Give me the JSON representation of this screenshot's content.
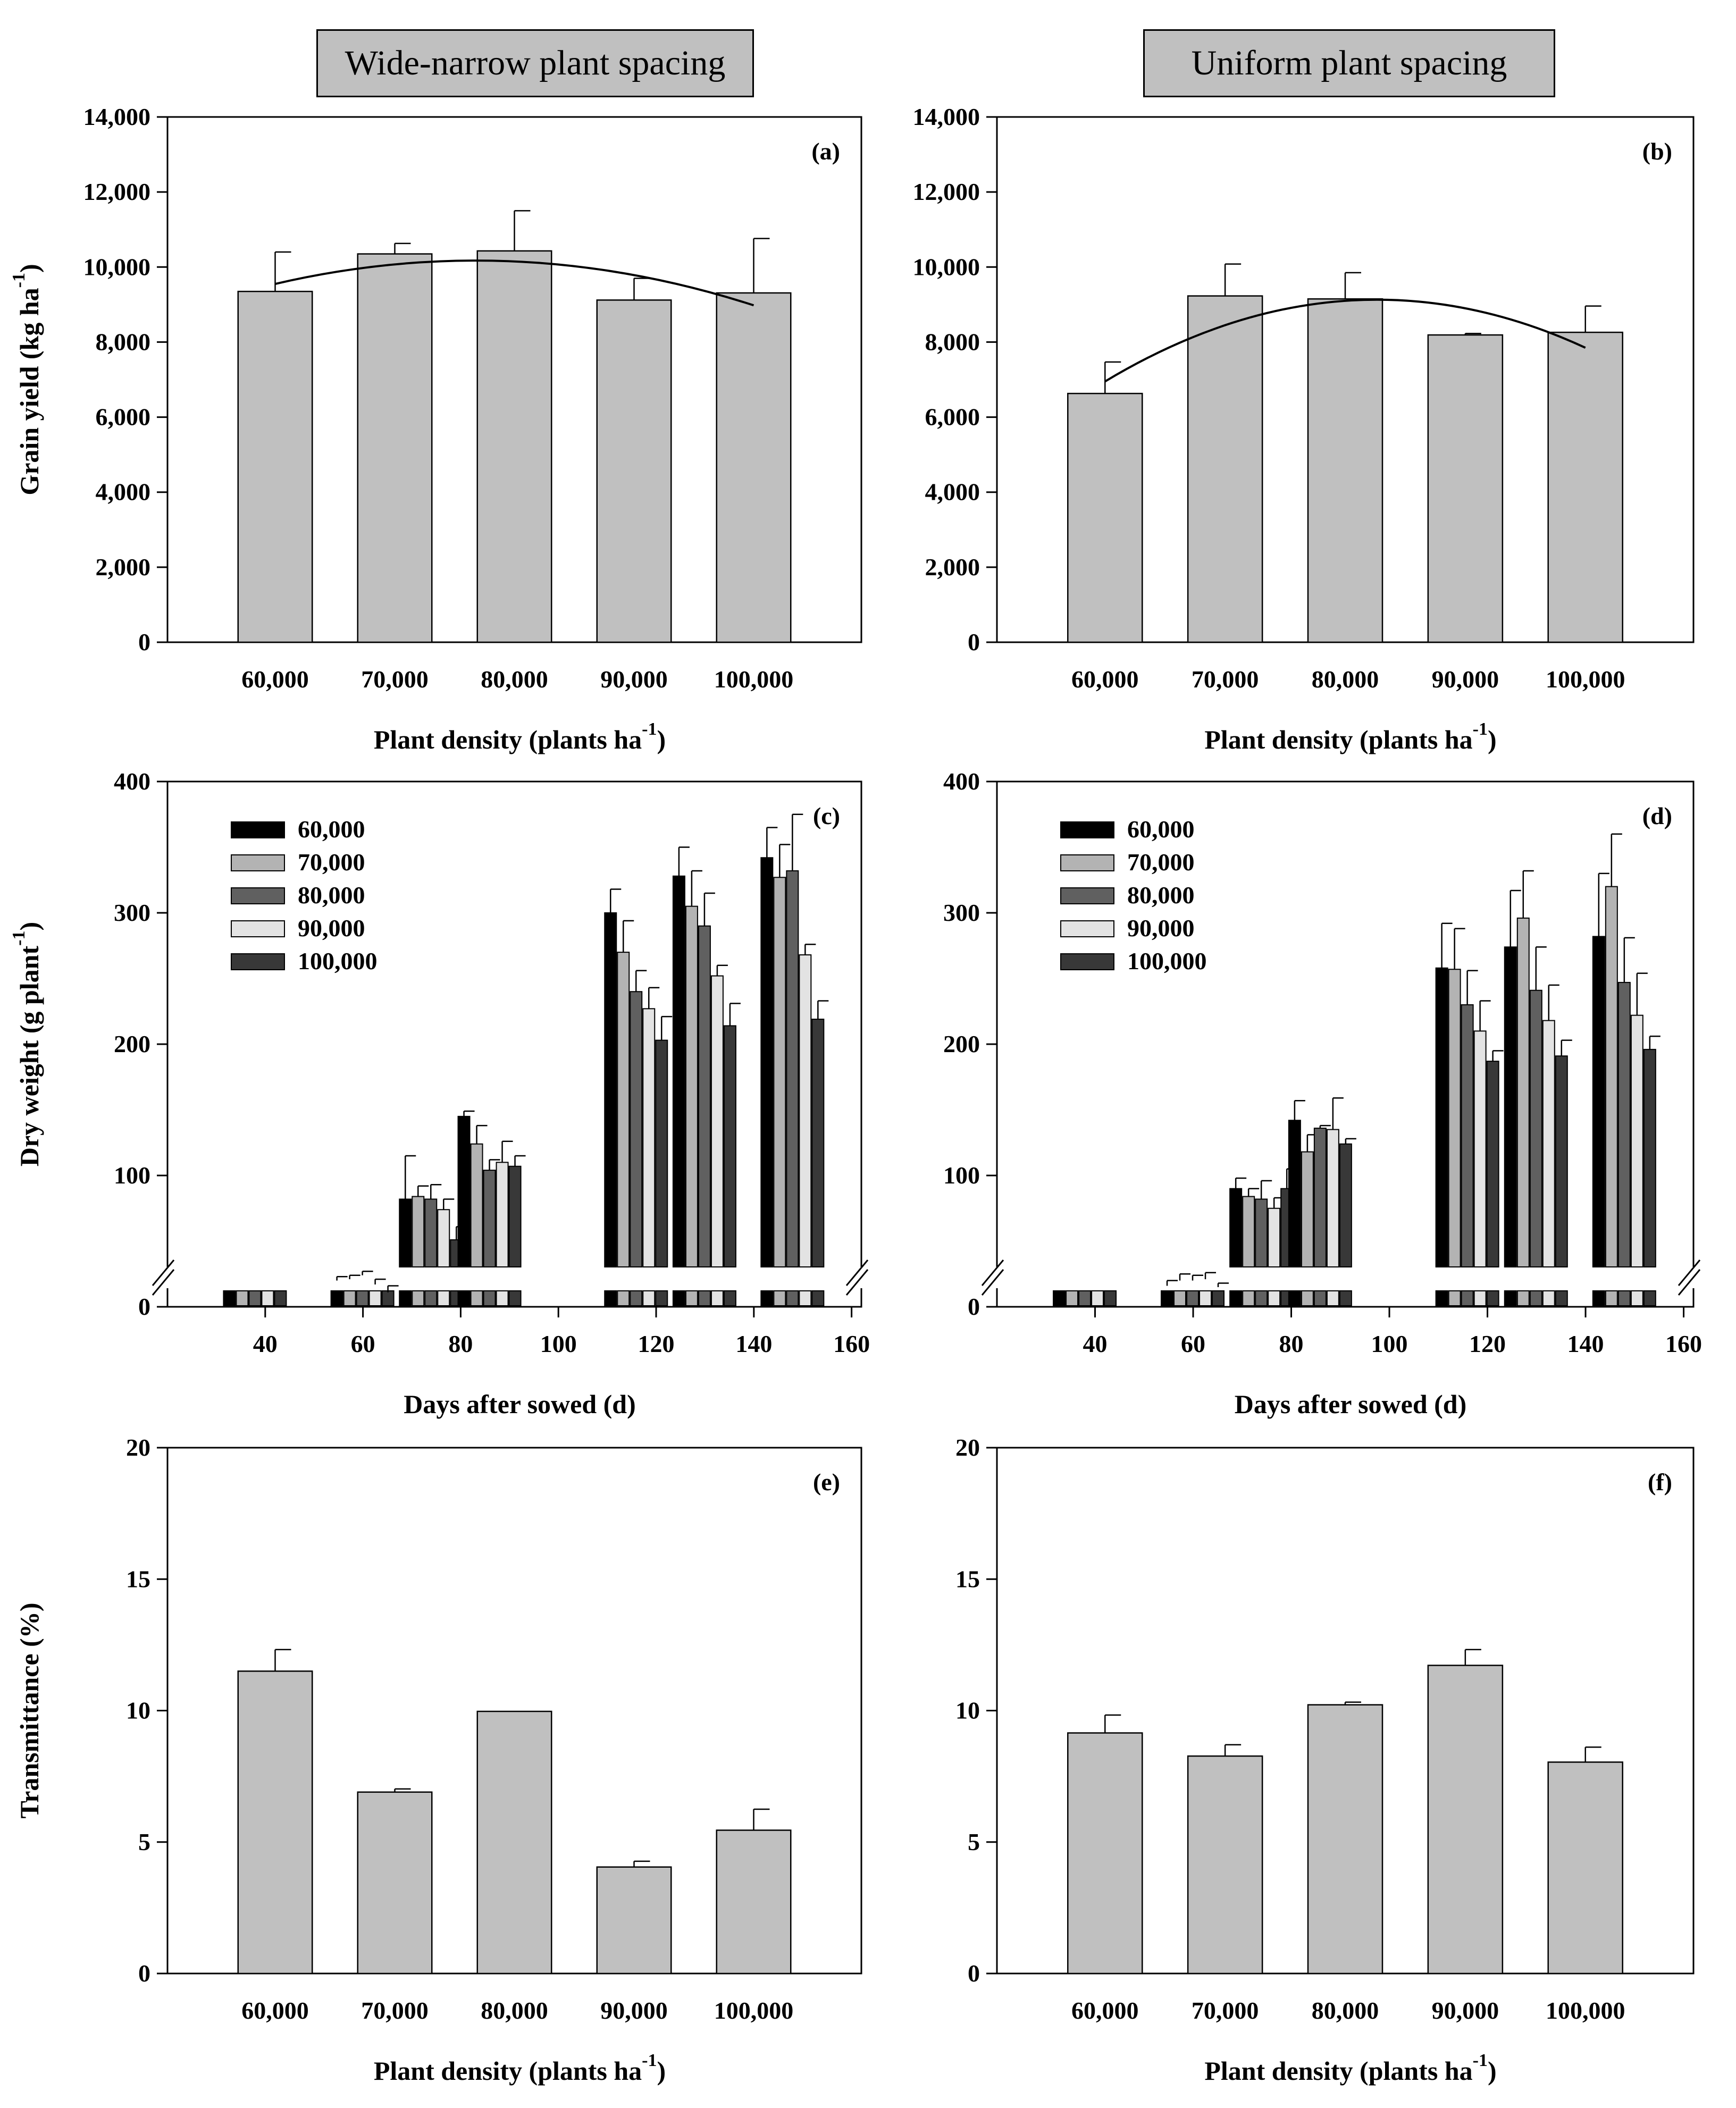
{
  "headers": {
    "left": "Wide-narrow plant spacing",
    "right": "Uniform plant spacing"
  },
  "colors": {
    "bar_fill": "#c0c0c0",
    "series": [
      "#000000",
      "#b3b3b3",
      "#606060",
      "#e3e3e3",
      "#383838"
    ]
  },
  "chart_data": [
    {
      "id": "a",
      "type": "bar",
      "panel_label": "(a)",
      "categories": [
        "60,000",
        "70,000",
        "80,000",
        "90,000",
        "100,000"
      ],
      "values": [
        9350,
        10350,
        10430,
        9120,
        9310
      ],
      "errors": [
        1050,
        280,
        1070,
        580,
        1450
      ],
      "trendline": "quadratic",
      "trend_points": [
        9550,
        10050,
        10150,
        9780,
        8980
      ],
      "xlabel": "Plant density (plants ha",
      "xlabel_sup": "-1",
      "xlabel_tail": ")",
      "ylabel": "Grain yield (kg ha",
      "ylabel_sup": "-1",
      "ylabel_tail": ")",
      "ylim": [
        0,
        14000
      ],
      "yticks": [
        "0",
        "2,000",
        "4,000",
        "6,000",
        "8,000",
        "10,000",
        "12,000",
        "14,000"
      ]
    },
    {
      "id": "b",
      "type": "bar",
      "panel_label": "(b)",
      "categories": [
        "60,000",
        "70,000",
        "80,000",
        "90,000",
        "100,000"
      ],
      "values": [
        6630,
        9230,
        9150,
        8190,
        8260
      ],
      "errors": [
        840,
        850,
        700,
        40,
        700
      ],
      "trendline": "quadratic",
      "trend_points": [
        6950,
        8350,
        9100,
        8920,
        7850
      ],
      "xlabel": "Plant density (plants ha",
      "xlabel_sup": "-1",
      "xlabel_tail": ")",
      "ylabel": "",
      "ylabel_sup": "",
      "ylabel_tail": "",
      "ylim": [
        0,
        14000
      ],
      "yticks": [
        "0",
        "2,000",
        "4,000",
        "6,000",
        "8,000",
        "10,000",
        "12,000",
        "14,000"
      ]
    },
    {
      "id": "c",
      "type": "bar",
      "panel_label": "(c)",
      "x": [
        38,
        60,
        74,
        86,
        116,
        130,
        148
      ],
      "series": [
        {
          "name": "60,000",
          "values": [
            null,
            20,
            82,
            145,
            300,
            328,
            342
          ],
          "errors": [
            null,
            3,
            33,
            4,
            18,
            22,
            23
          ]
        },
        {
          "name": "70,000",
          "values": [
            null,
            21,
            84,
            124,
            270,
            305,
            327
          ],
          "errors": [
            null,
            3,
            8,
            14,
            24,
            27,
            25
          ]
        },
        {
          "name": "80,000",
          "values": [
            null,
            24,
            82,
            104,
            240,
            290,
            332
          ],
          "errors": [
            null,
            3,
            11,
            8,
            16,
            25,
            43
          ]
        },
        {
          "name": "90,000",
          "values": [
            null,
            17,
            74,
            110,
            227,
            252,
            268
          ],
          "errors": [
            null,
            4,
            8,
            16,
            16,
            8,
            8
          ]
        },
        {
          "name": "100,000",
          "values": [
            null,
            11,
            51,
            107,
            203,
            214,
            219
          ],
          "errors": [
            null,
            5,
            10,
            8,
            18,
            17,
            14
          ]
        }
      ],
      "xlabel": "Days after sowed (d)",
      "ylabel": "Dry weight (g plant",
      "ylabel_sup": "-1",
      "ylabel_tail": ")",
      "xlim": [
        20,
        162
      ],
      "xticks": [
        "40",
        "60",
        "80",
        "100",
        "120",
        "140",
        "160"
      ],
      "ylim": [
        0,
        400
      ],
      "yticks": [
        "0",
        "100",
        "200",
        "300",
        "400"
      ],
      "axis_break": true
    },
    {
      "id": "d",
      "type": "bar",
      "panel_label": "(d)",
      "x": [
        38,
        60,
        74,
        86,
        116,
        130,
        148
      ],
      "series": [
        {
          "name": "60,000",
          "values": [
            null,
            16,
            90,
            142,
            258,
            274,
            282
          ],
          "errors": [
            null,
            4,
            8,
            15,
            34,
            43,
            48
          ]
        },
        {
          "name": "70,000",
          "values": [
            null,
            20,
            84,
            118,
            257,
            296,
            320
          ],
          "errors": [
            null,
            5,
            6,
            13,
            31,
            36,
            40
          ]
        },
        {
          "name": "80,000",
          "values": [
            null,
            20,
            82,
            136,
            230,
            241,
            247
          ],
          "errors": [
            null,
            4,
            14,
            2,
            26,
            33,
            34
          ]
        },
        {
          "name": "90,000",
          "values": [
            null,
            21,
            75,
            135,
            210,
            218,
            222
          ],
          "errors": [
            null,
            5,
            8,
            24,
            23,
            27,
            32
          ]
        },
        {
          "name": "100,000",
          "values": [
            null,
            15,
            90,
            124,
            187,
            191,
            196
          ],
          "errors": [
            null,
            3,
            15,
            4,
            8,
            12,
            10
          ]
        }
      ],
      "xlabel": "Days after sowed (d)",
      "ylabel": "",
      "ylabel_sup": "",
      "ylabel_tail": "",
      "xlim": [
        20,
        162
      ],
      "xticks": [
        "40",
        "60",
        "80",
        "100",
        "120",
        "140",
        "160"
      ],
      "ylim": [
        0,
        400
      ],
      "yticks": [
        "0",
        "100",
        "200",
        "300",
        "400"
      ],
      "axis_break": true
    },
    {
      "id": "e",
      "type": "bar",
      "panel_label": "(e)",
      "categories": [
        "60,000",
        "70,000",
        "80,000",
        "90,000",
        "100,000"
      ],
      "values": [
        11.5,
        6.9,
        9.97,
        4.05,
        5.45
      ],
      "errors": [
        0.82,
        0.12,
        0,
        0.22,
        0.8
      ],
      "xlabel": "Plant density (plants ha",
      "xlabel_sup": "-1",
      "xlabel_tail": ")",
      "ylabel": "Transmittance (%)",
      "ylabel_sup": "",
      "ylabel_tail": "",
      "ylim": [
        0,
        20
      ],
      "yticks": [
        "0",
        "5",
        "10",
        "15",
        "20"
      ]
    },
    {
      "id": "f",
      "type": "bar",
      "panel_label": "(f)",
      "categories": [
        "60,000",
        "70,000",
        "80,000",
        "90,000",
        "100,000"
      ],
      "values": [
        9.15,
        8.27,
        10.22,
        11.72,
        8.04
      ],
      "errors": [
        0.68,
        0.43,
        0.1,
        0.6,
        0.57
      ],
      "xlabel": "Plant density (plants ha",
      "xlabel_sup": "-1",
      "xlabel_tail": ")",
      "ylabel": "",
      "ylabel_sup": "",
      "ylabel_tail": "",
      "ylim": [
        0,
        20
      ],
      "yticks": [
        "0",
        "5",
        "10",
        "15",
        "20"
      ]
    }
  ]
}
